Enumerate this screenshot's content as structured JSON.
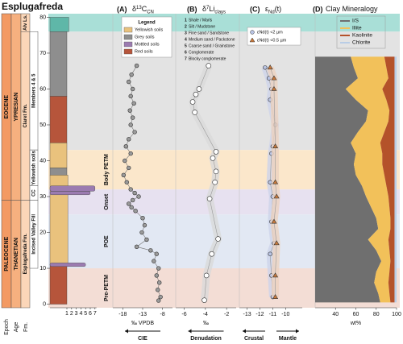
{
  "title": "Esplugafreda",
  "stratigraphy": {
    "ylim": [
      -1,
      81
    ],
    "yticks": [
      0,
      10,
      20,
      30,
      40,
      50,
      60,
      70,
      80
    ],
    "bottom_labels": [
      "Epoch",
      "Age",
      "Fm."
    ],
    "epochs": {
      "color": "#f39a63",
      "items": [
        {
          "label": "EOCENE",
          "from": 29,
          "to": 81
        },
        {
          "label": "PALEOCENE",
          "from": -1,
          "to": 29
        }
      ]
    },
    "ages": {
      "color": "#f6b07f",
      "items": [
        {
          "label": "YPRESIAN",
          "from": 29,
          "to": 81
        },
        {
          "label": "THANETIAN",
          "from": -1,
          "to": 29
        }
      ]
    },
    "formations": {
      "color": "#fbd6b8",
      "items": [
        {
          "label": "Alv Ls.",
          "from": 76,
          "to": 81
        },
        {
          "label": "Claret Fm.",
          "from": 29,
          "to": 76
        },
        {
          "label": "Esplugafreda Fm.",
          "from": -1,
          "to": 29
        }
      ]
    },
    "members": {
      "color": "#ffffff",
      "items": [
        {
          "label": "Members 4 & 5",
          "from": 43,
          "to": 76
        },
        {
          "label": "Yellowish soils",
          "from": 33,
          "to": 43
        },
        {
          "label": "CC",
          "from": 29,
          "to": 33
        },
        {
          "label": "Incised Valley Fill",
          "from": 10,
          "to": 29
        }
      ]
    },
    "bands": [
      {
        "from": 76,
        "to": 81,
        "color": "#a9dfd7"
      },
      {
        "from": 43,
        "to": 76,
        "color": "#e3e3e3"
      }
    ],
    "phases": [
      {
        "label": "Body PETM",
        "from": 32,
        "to": 43,
        "color": "#fbe7cb"
      },
      {
        "label": "Onset",
        "from": 25,
        "to": 32,
        "color": "#e7e1f0"
      },
      {
        "label": "POE",
        "from": 10,
        "to": 25,
        "color": "#e2e8f3"
      },
      {
        "label": "Pre-PETM",
        "from": -1,
        "to": 10,
        "color": "#f3ddd5"
      }
    ],
    "grain_ticks": [
      1,
      2,
      3,
      4,
      5,
      6,
      7
    ],
    "units": [
      {
        "from": 0,
        "to": 11,
        "grain": 1,
        "color": "#b6553b"
      },
      {
        "from": 11,
        "to": 36,
        "grain": 1.2,
        "color": "#e9c27d"
      },
      {
        "from": 36,
        "to": 38,
        "grain": 1,
        "color": "#8e8e8e"
      },
      {
        "from": 38,
        "to": 45,
        "grain": 1,
        "color": "#e9c27d"
      },
      {
        "from": 45,
        "to": 58,
        "grain": 1,
        "color": "#b6553b"
      },
      {
        "from": 58,
        "to": 76,
        "grain": 1,
        "color": "#8e8e8e"
      },
      {
        "from": 76,
        "to": 80,
        "grain": 1.4,
        "color": "#5fb7a8"
      },
      {
        "from": 31.5,
        "to": 33,
        "grain": 7,
        "color": "#9b7bb0"
      },
      {
        "from": 30.5,
        "to": 31.5,
        "grain": 6,
        "color": "#9b7bb0"
      },
      {
        "from": 10.5,
        "to": 11.5,
        "grain": 5,
        "color": "#9b7bb0"
      }
    ],
    "soil_legend": {
      "title": "Legend",
      "items": [
        {
          "label": "Yellowish soils",
          "color": "#e9c27d"
        },
        {
          "label": "Grey soils",
          "color": "#8e8e8e"
        },
        {
          "label": "Mottled soils",
          "color": "#9b7bb0"
        },
        {
          "label": "Red soils",
          "color": "#b6553b"
        }
      ]
    },
    "grain_legend": [
      {
        "number": 1,
        "label": "Shale / Marls"
      },
      {
        "number": 2,
        "label": "Silt / Mudstone"
      },
      {
        "number": 3,
        "label": "Fine sand / Sandstone"
      },
      {
        "number": 4,
        "label": "Medium sand / Packstone"
      },
      {
        "number": 5,
        "label": "Coarse sand / Grainstone"
      },
      {
        "number": 6,
        "label": "Conglomerate"
      },
      {
        "number": 7,
        "label": "Blocky conglomerate"
      }
    ]
  },
  "chart_data": [
    {
      "type": "scatter",
      "label": "(A)",
      "title": [
        {
          "text": "δ"
        },
        {
          "text": "13",
          "pos": "sup"
        },
        {
          "text": "C"
        },
        {
          "text": "CN",
          "pos": "sub"
        }
      ],
      "xlim": [
        -20.5,
        -5.5
      ],
      "xticks": [
        -18,
        -13,
        -8
      ],
      "xlabel": "‰ VPDB",
      "arrows": [
        {
          "label": "CIE",
          "direction": "left"
        }
      ],
      "series": [
        {
          "marker": "circle",
          "color": "#9a9a9a",
          "connect": true,
          "depths": [
            66.5,
            64,
            62,
            60,
            58,
            56,
            54,
            52,
            50,
            48,
            46,
            44,
            42,
            40,
            38,
            36,
            34,
            32,
            31,
            30,
            29,
            28,
            27,
            26,
            24,
            22,
            20,
            18,
            16,
            15,
            14,
            12,
            10,
            8,
            6,
            4,
            2,
            1
          ],
          "values": [
            -14.5,
            -15.8,
            -16.5,
            -15.5,
            -16,
            -15.2,
            -16.2,
            -15.5,
            -16,
            -15,
            -16.5,
            -17.2,
            -16,
            -17.5,
            -16.5,
            -17.8,
            -17,
            -16,
            -15,
            -14,
            -15.5,
            -16.5,
            -15.8,
            -14.8,
            -13,
            -12.5,
            -13.2,
            -12,
            -14.5,
            -11,
            -9.5,
            -10.2,
            -9,
            -9.5,
            -8.8,
            -9.2,
            -8.5,
            -9
          ]
        }
      ]
    },
    {
      "type": "scatter",
      "label": "(B)",
      "title": [
        {
          "text": "δ"
        },
        {
          "text": "7",
          "pos": "sup"
        },
        {
          "text": "Li"
        },
        {
          "text": "clays",
          "pos": "sub"
        }
      ],
      "xlim": [
        -6.8,
        -1.1
      ],
      "xticks": [
        -6,
        -4,
        -2
      ],
      "xlabel": "‰",
      "arrows": [
        {
          "label": "Denudation",
          "direction": "left"
        }
      ],
      "series": [
        {
          "marker": "open",
          "color": "#ffffff",
          "band": "#dadada",
          "depths": [
            66.5,
            60,
            58.5,
            56.4,
            53.5,
            42.5,
            40.7,
            37,
            34,
            29.4,
            18.2,
            14,
            8,
            1.1
          ],
          "values": [
            -3.7,
            -4.6,
            -4.9,
            -5.2,
            -5,
            -3,
            -3.3,
            -3,
            -3.1,
            -3.6,
            -2.8,
            -3.4,
            -3.9,
            -4.1
          ]
        }
      ]
    },
    {
      "type": "scatter",
      "label": "(C)",
      "title": [
        {
          "text": "ε"
        },
        {
          "text": "Nd",
          "pos": "sub"
        },
        {
          "text": "(t)"
        }
      ],
      "xlim": [
        -13.6,
        -8.7
      ],
      "xticks": [
        -13,
        -12,
        -11,
        -10
      ],
      "arrows": [
        {
          "label": "Crustal",
          "direction": "left"
        },
        {
          "label": "Mantle",
          "direction": "right"
        }
      ],
      "series": [
        {
          "name": "εNd(t) <2 µm",
          "marker": "circle",
          "color": "#b8c3e3",
          "band": "#cdd3ea",
          "depths": [
            66,
            63,
            60,
            57,
            50,
            44,
            42,
            34,
            30,
            23,
            17,
            14,
            8,
            2
          ],
          "values": [
            -11.6,
            -11.3,
            -11.1,
            -11.2,
            -10.8,
            -11,
            -11.1,
            -11.2,
            -11,
            -11.1,
            -10.9,
            -11.2,
            -11.1,
            -11
          ]
        },
        {
          "name": "εNd(t) <0.5 µm",
          "marker": "triangle",
          "color": "#c97a3c",
          "band": "#ecd2bf",
          "depths": [
            66,
            63,
            60,
            44,
            34,
            30,
            23,
            17,
            8,
            2
          ],
          "values": [
            -11.2,
            -10.9,
            -10.9,
            -10.8,
            -10.8,
            -10.7,
            -10.9,
            -10.7,
            -10.8,
            -10.8
          ]
        }
      ]
    },
    {
      "type": "area",
      "label": "(D)",
      "title": [
        {
          "text": "Clay Mineralogy"
        }
      ],
      "stacked": true,
      "xlim": [
        20,
        100
      ],
      "xticks": [
        40,
        60,
        80,
        100
      ],
      "xlabel": "wt%",
      "depths": [
        69,
        66,
        63,
        60,
        57,
        54,
        51,
        48,
        45,
        42,
        39,
        36,
        33,
        30,
        27,
        24,
        21,
        18,
        15,
        12,
        9,
        6,
        3,
        0.5
      ],
      "series": [
        {
          "name": "I/S",
          "color": "#6f6f6f",
          "values": [
            55,
            58,
            62,
            50,
            60,
            72,
            70,
            62,
            55,
            60,
            58,
            60,
            66,
            70,
            75,
            80,
            82,
            72,
            80,
            85,
            80,
            78,
            82,
            84
          ]
        },
        {
          "name": "Illite",
          "color": "#f2c15a",
          "values": [
            33,
            32,
            30,
            36,
            30,
            21,
            22,
            26,
            29,
            26,
            28,
            28,
            24,
            22,
            18,
            14,
            12,
            20,
            13,
            9,
            13,
            14,
            11,
            10
          ]
        },
        {
          "name": "Kaolinite",
          "color": "#b4522a",
          "values": [
            10,
            8,
            6,
            12,
            8,
            5,
            6,
            10,
            14,
            12,
            12,
            10,
            8,
            6,
            5,
            4,
            4,
            6,
            5,
            4,
            5,
            6,
            5,
            4
          ]
        },
        {
          "name": "Chlorite",
          "color": "#b9cde6",
          "values": [
            2,
            2,
            2,
            2,
            2,
            2,
            2,
            2,
            2,
            2,
            2,
            2,
            2,
            2,
            2,
            2,
            2,
            2,
            2,
            2,
            2,
            2,
            2,
            2
          ]
        }
      ]
    }
  ]
}
